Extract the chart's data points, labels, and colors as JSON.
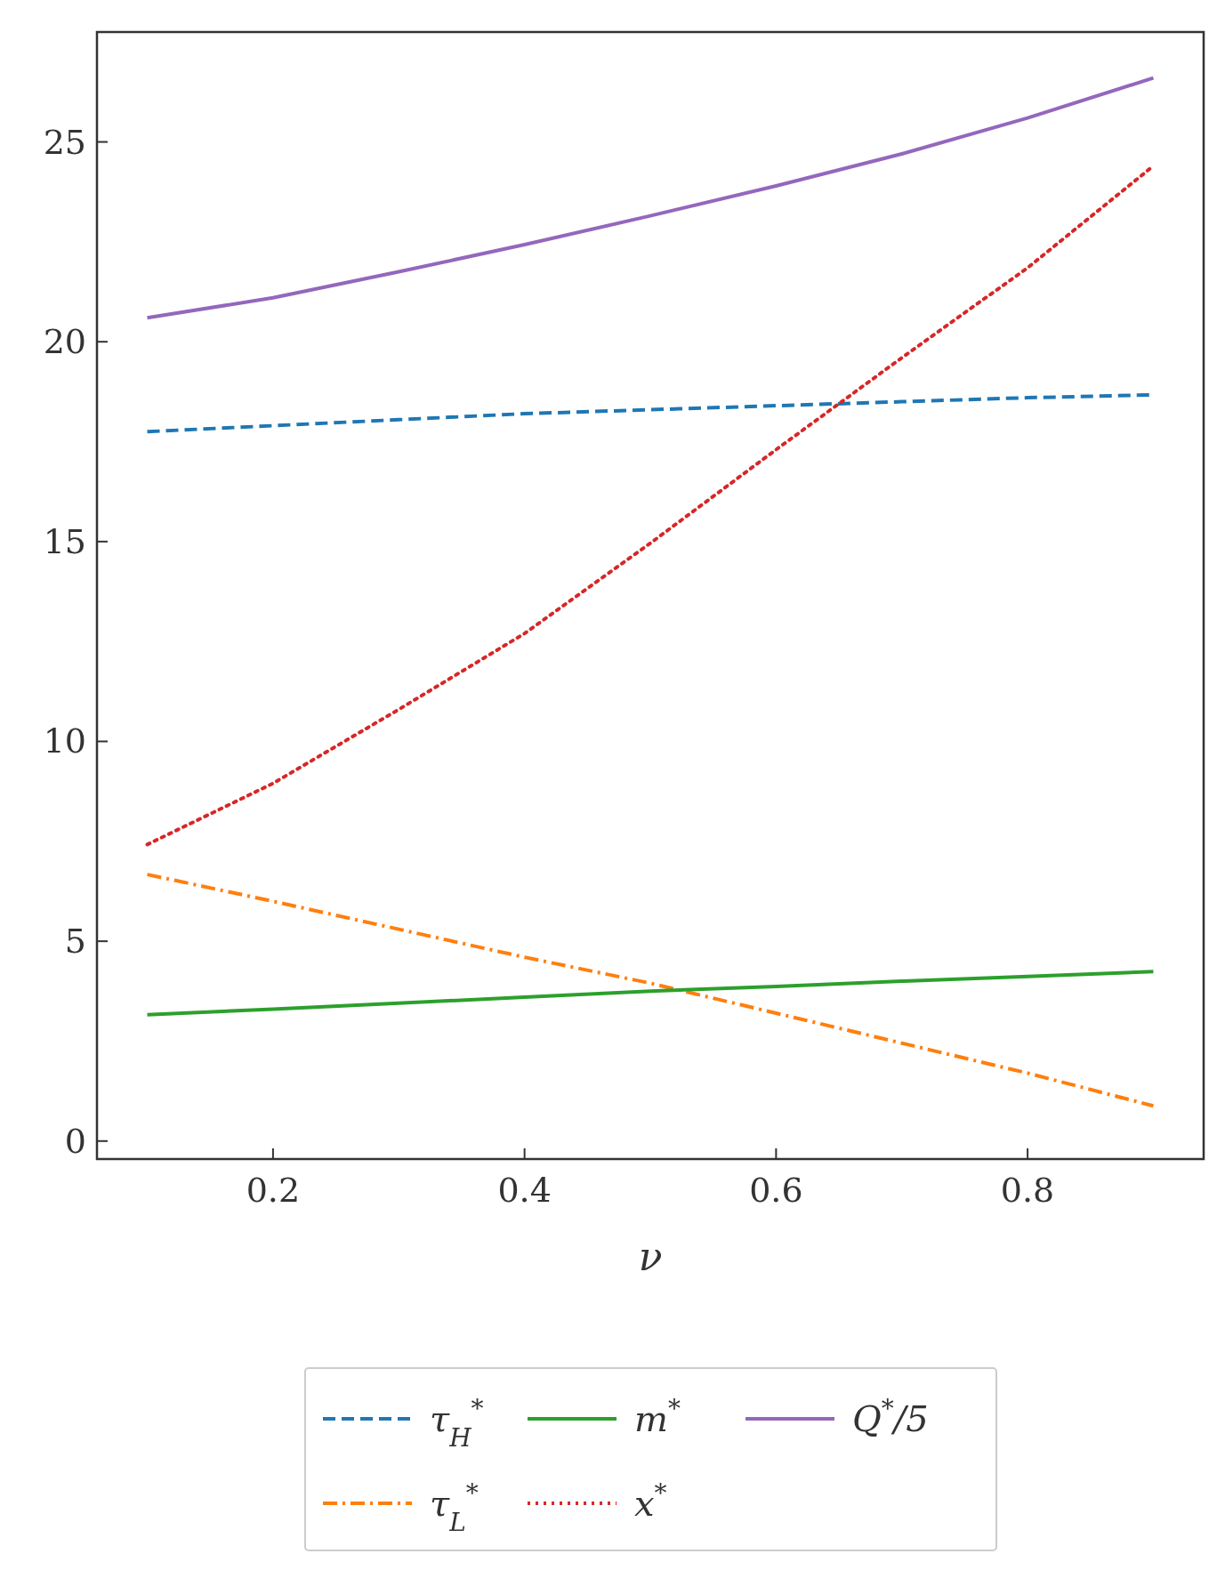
{
  "chart_data": {
    "type": "line",
    "xlabel": "ν",
    "xlim": [
      0.06,
      0.94
    ],
    "ylim": [
      -0.45,
      27.75
    ],
    "xticks": [
      {
        "value": 0.2,
        "label": "0.2"
      },
      {
        "value": 0.4,
        "label": "0.4"
      },
      {
        "value": 0.6,
        "label": "0.6"
      },
      {
        "value": 0.8,
        "label": "0.8"
      }
    ],
    "yticks": [
      0,
      5,
      10,
      15,
      20,
      25
    ],
    "grid": false,
    "legend": "bottom",
    "marker": "none",
    "x": [
      0.1,
      0.2,
      0.3,
      0.4,
      0.5,
      0.6,
      0.7,
      0.8,
      0.9
    ],
    "series": [
      {
        "name": "τ$_{H}$$^{*}$",
        "color": "#1f77b4",
        "line_style": "dashed",
        "values": [
          17.75,
          17.9,
          18.05,
          18.2,
          18.3,
          18.4,
          18.5,
          18.6,
          18.67
        ]
      },
      {
        "name": "τ$_{L}$$^{*}$",
        "color": "#ff7f0e",
        "line_style": "dashdot",
        "values": [
          6.67,
          6.0,
          5.3,
          4.6,
          3.95,
          3.2,
          2.45,
          1.7,
          0.88
        ]
      },
      {
        "name": "m$^{*}$",
        "color": "#2ca02c",
        "line_style": "solid",
        "values": [
          3.16,
          3.3,
          3.45,
          3.6,
          3.75,
          3.87,
          4.0,
          4.12,
          4.24
        ]
      },
      {
        "name": "x$^{*}$",
        "color": "#d62728",
        "line_style": "dotted",
        "values": [
          7.42,
          8.95,
          10.8,
          12.7,
          14.96,
          17.3,
          19.6,
          21.85,
          24.4
        ]
      },
      {
        "name": "Q$^{*}$/5",
        "color": "#9467bd",
        "line_style": "solid",
        "values": [
          20.6,
          21.1,
          21.75,
          22.43,
          23.15,
          23.9,
          24.7,
          25.6,
          26.6
        ]
      }
    ]
  }
}
